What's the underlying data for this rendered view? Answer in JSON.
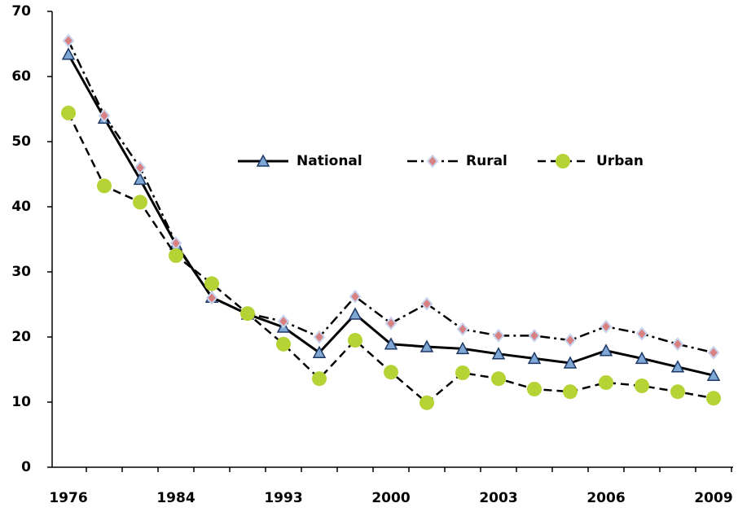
{
  "chart_data": {
    "type": "line",
    "categories": [
      "1976",
      null,
      null,
      "1984",
      null,
      null,
      "1993",
      null,
      null,
      "2000",
      null,
      null,
      "2003",
      null,
      null,
      "2006",
      null,
      null,
      "2009"
    ],
    "series": [
      {
        "name": "National",
        "color": "#000000",
        "marker_color": "#7fa7d6",
        "marker": "triangle",
        "line_style": "solid",
        "values": [
          63.4,
          53.6,
          44.2,
          34.2,
          26.1,
          23.5,
          21.5,
          17.6,
          23.5,
          18.9,
          18.5,
          18.2,
          17.4,
          16.7,
          16.0,
          17.9,
          16.7,
          15.4,
          14.1
        ]
      },
      {
        "name": "Rural",
        "color": "#000000",
        "marker_color": "#d98080",
        "marker": "diamond",
        "line_style": "dashdot",
        "values": [
          65.5,
          54.0,
          46.0,
          34.4,
          26.0,
          23.6,
          22.4,
          20.0,
          26.2,
          22.1,
          25.1,
          21.2,
          20.2,
          20.2,
          19.5,
          21.6,
          20.5,
          18.9,
          17.6
        ]
      },
      {
        "name": "Urban",
        "color": "#000000",
        "marker_color": "#b5d334",
        "marker": "circle",
        "line_style": "dashed",
        "values": [
          54.4,
          43.2,
          40.7,
          32.5,
          28.2,
          23.6,
          18.9,
          13.6,
          19.5,
          14.6,
          9.9,
          14.5,
          13.6,
          12.0,
          11.6,
          13.0,
          12.5,
          11.6,
          10.6
        ]
      }
    ],
    "ylim": [
      0,
      70
    ],
    "yticks": [
      0,
      10,
      20,
      30,
      40,
      50,
      60,
      70
    ],
    "grid": false,
    "legend": "top"
  }
}
